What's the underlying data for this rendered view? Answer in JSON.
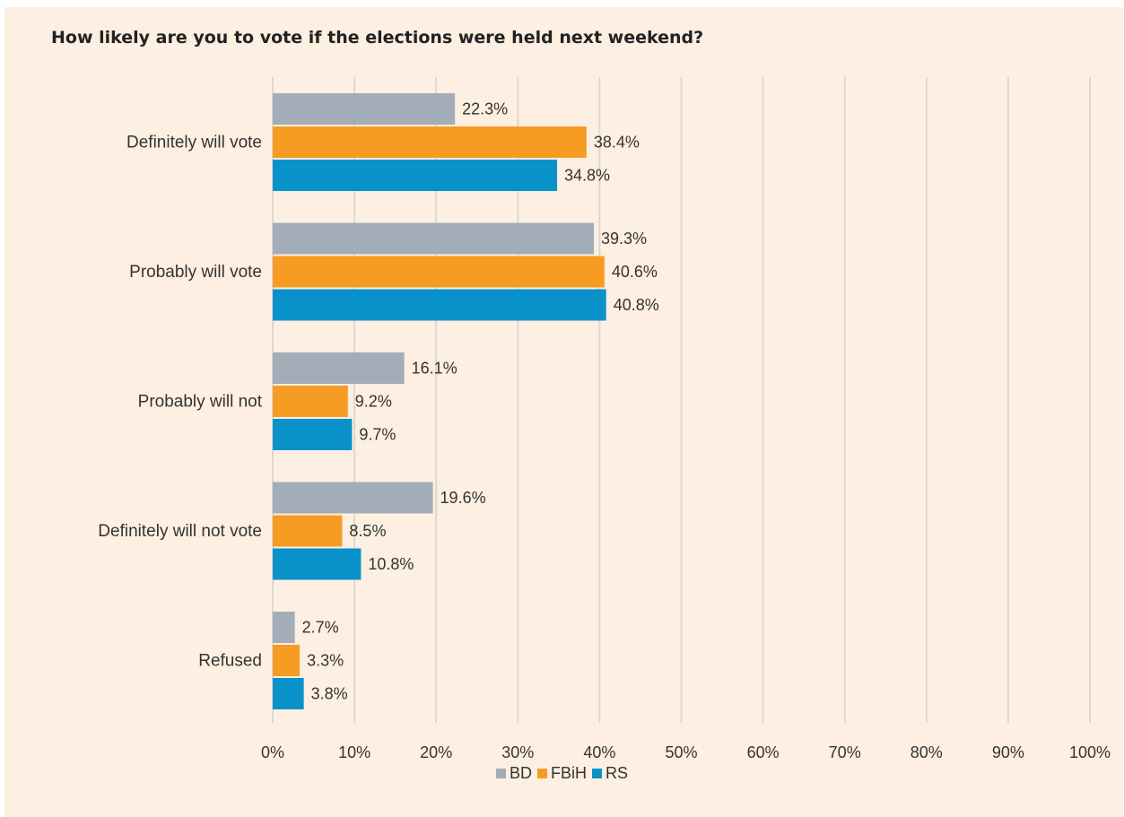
{
  "chart_data": {
    "type": "bar",
    "orientation": "horizontal",
    "title": "How likely are you to vote if the elections were held next weekend?",
    "categories": [
      "Definitely will vote",
      "Probably will vote",
      "Probably will not",
      "Definitely will not vote",
      "Refused"
    ],
    "series": [
      {
        "name": "BD",
        "color": "#a2adb8",
        "values": [
          22.3,
          39.3,
          16.1,
          19.6,
          2.7
        ],
        "labels": [
          "22.3%",
          "39.3%",
          "16.1%",
          "19.6%",
          "2.7%"
        ]
      },
      {
        "name": "FBiH",
        "color": "#f79c23",
        "values": [
          38.4,
          40.6,
          9.2,
          8.5,
          3.3
        ],
        "labels": [
          "38.4%",
          "40.6%",
          "9.2%",
          "8.5%",
          "3.3%"
        ]
      },
      {
        "name": "RS",
        "color": "#0892c9",
        "values": [
          34.8,
          40.8,
          9.7,
          10.8,
          3.8
        ],
        "labels": [
          "34.8%",
          "40.8%",
          "9.7%",
          "10.8%",
          "3.8%"
        ]
      }
    ],
    "xlim": [
      0,
      100
    ],
    "xticks": [
      "0%",
      "10%",
      "20%",
      "30%",
      "40%",
      "50%",
      "60%",
      "70%",
      "80%",
      "90%",
      "100%"
    ],
    "grid": true,
    "legend": "bottom"
  }
}
